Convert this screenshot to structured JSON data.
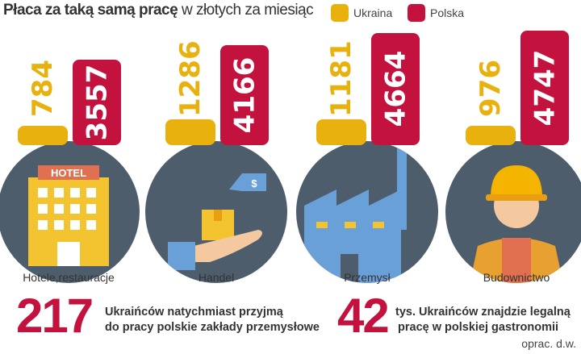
{
  "title": {
    "bold": "Płaca za taką samą pracę",
    "rest": "w złotych za miesiąc"
  },
  "legend": [
    {
      "label": "Ukraina",
      "color": "#e8b10e"
    },
    {
      "label": "Polska",
      "color": "#c4123f"
    }
  ],
  "chart_data": {
    "type": "bar",
    "title": "Płaca za taką samą pracę w złotych za miesiąc",
    "categories": [
      "Hotele,restauracje",
      "Handel",
      "Przemysł",
      "Budownictwo"
    ],
    "series": [
      {
        "name": "Ukraina",
        "values": [
          784,
          1286,
          1181,
          976
        ]
      },
      {
        "name": "Polska",
        "values": [
          3557,
          4166,
          4664,
          4747
        ]
      }
    ],
    "icons": [
      "hotel-icon",
      "shopping-hand-icon",
      "factory-icon",
      "construction-worker-icon"
    ],
    "icon_text": "HOTEL"
  },
  "facts": [
    {
      "number": "217",
      "line1": "Ukraińców natychmiast przyjmą",
      "line2": "do pracy polskie zakłady przemysłowe"
    },
    {
      "number": "42",
      "line1": "tys. Ukraińców znajdzie legalną",
      "line2": "pracę w polskiej gastronomii"
    }
  ],
  "source": "oprac. d.w."
}
